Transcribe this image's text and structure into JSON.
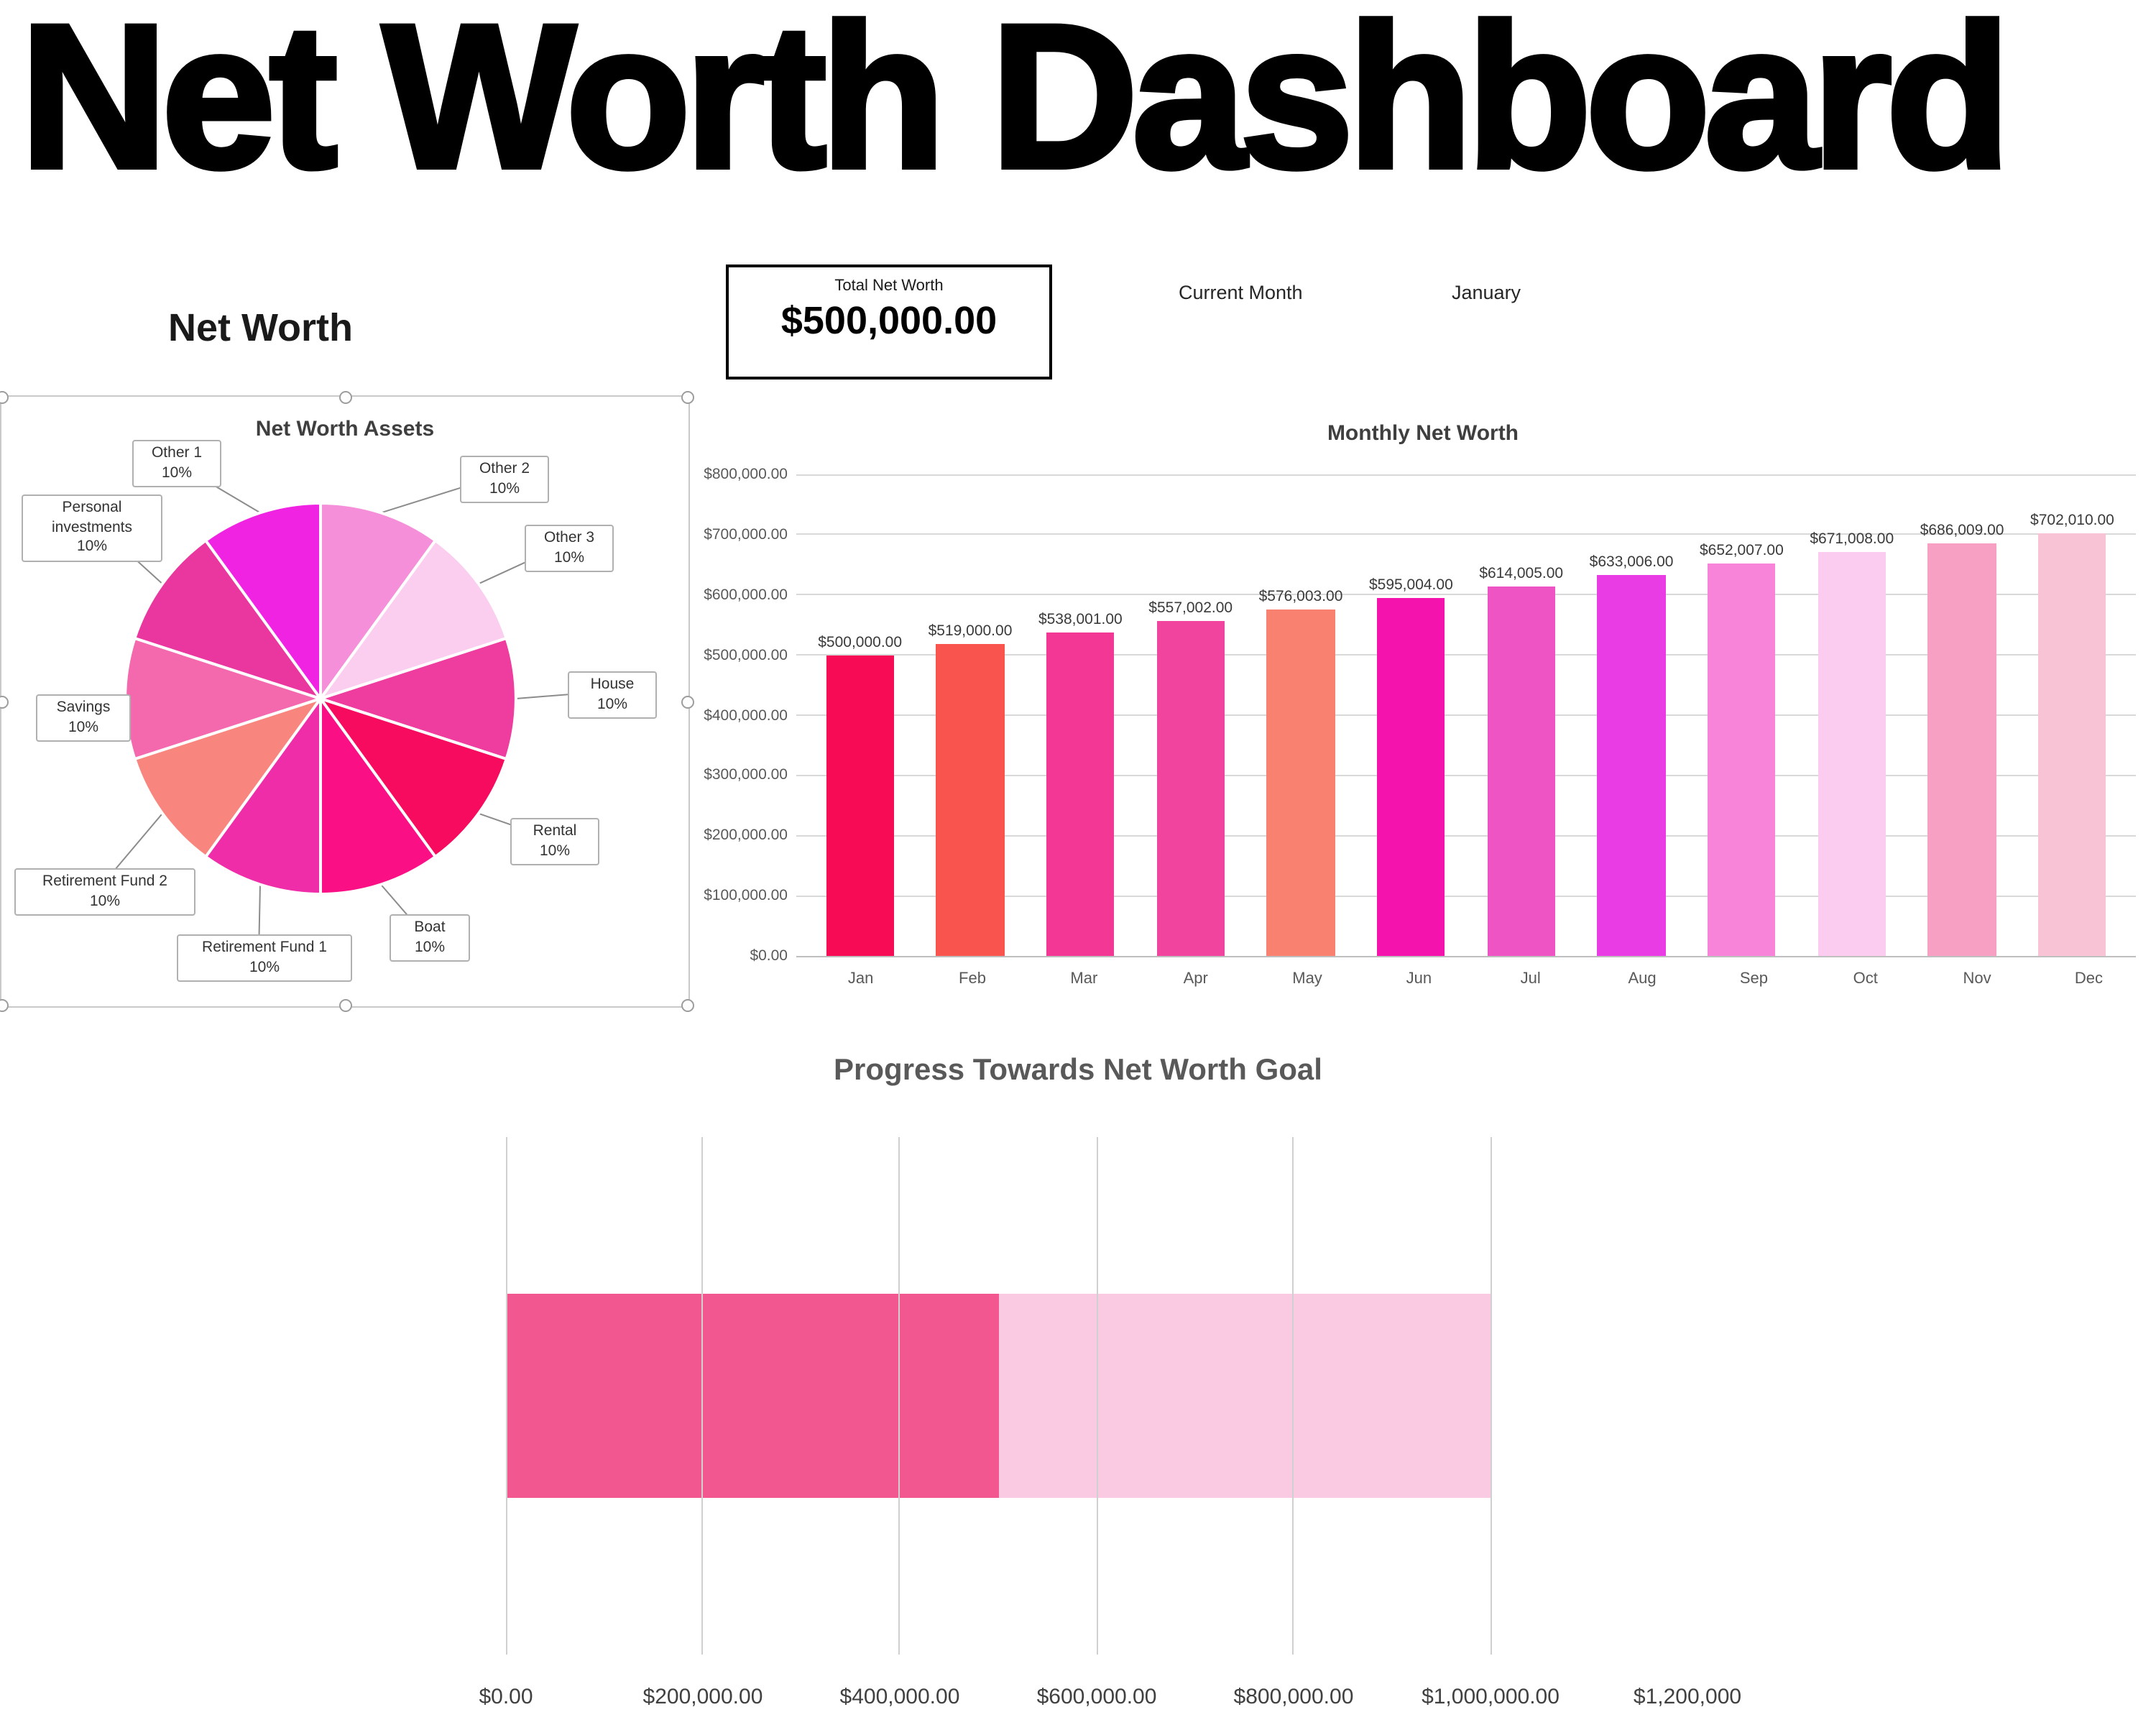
{
  "title": "Net Worth Dashboard",
  "net_worth_section_heading": "Net Worth",
  "summary": {
    "total_net_worth_label": "Total Net Worth",
    "total_net_worth_value": "$500,000.00",
    "current_month_label": "Current Month",
    "current_month_value": "January"
  },
  "chart_data": [
    {
      "type": "pie",
      "title": "Net Worth Assets",
      "slices": [
        {
          "label": "Other 2",
          "pct": "10%",
          "value": 10,
          "color": "#f58fd9"
        },
        {
          "label": "Other 3",
          "pct": "10%",
          "value": 10,
          "color": "#fbcdef"
        },
        {
          "label": "House",
          "pct": "10%",
          "value": 10,
          "color": "#ee3c9f"
        },
        {
          "label": "Rental",
          "pct": "10%",
          "value": 10,
          "color": "#f70b5e"
        },
        {
          "label": "Boat",
          "pct": "10%",
          "value": 10,
          "color": "#fa0f85"
        },
        {
          "label": "Retirement Fund 1",
          "pct": "10%",
          "value": 10,
          "color": "#f02da9"
        },
        {
          "label": "Retirement Fund 2",
          "pct": "10%",
          "value": 10,
          "color": "#f9867e"
        },
        {
          "label": "Savings",
          "pct": "10%",
          "value": 10,
          "color": "#f468ae"
        },
        {
          "label": "Personal investments",
          "pct": "10%",
          "value": 10,
          "color": "#e9379f"
        },
        {
          "label": "Other 1",
          "pct": "10%",
          "value": 10,
          "color": "#f023e3"
        }
      ]
    },
    {
      "type": "bar",
      "title": "Monthly Net Worth",
      "categories": [
        "Jan",
        "Feb",
        "Mar",
        "Apr",
        "May",
        "Jun",
        "Jul",
        "Aug",
        "Sep",
        "Oct",
        "Nov",
        "Dec"
      ],
      "values": [
        500000,
        519000,
        538001,
        557002,
        576003,
        595004,
        614005,
        633006,
        652007,
        671008,
        686009,
        702010
      ],
      "value_labels": [
        "$500,000.00",
        "$519,000.00",
        "$538,001.00",
        "$557,002.00",
        "$576,003.00",
        "$595,004.00",
        "$614,005.00",
        "$633,006.00",
        "$652,007.00",
        "$671,008.00",
        "$686,009.00",
        "$702,010.00"
      ],
      "bar_colors": [
        "#f70b55",
        "#fa544e",
        "#f23795",
        "#f1449f",
        "#f9816f",
        "#f414ad",
        "#ef54c5",
        "#ea3ce4",
        "#f784d8",
        "#fbcbf0",
        "#f89fc4",
        "#f9c3d6"
      ],
      "y_ticks": [
        "$800,000.00",
        "$700,000.00",
        "$600,000.00",
        "$500,000.00",
        "$400,000.00",
        "$300,000.00",
        "$200,000.00",
        "$100,000.00",
        "$0.00"
      ],
      "ylim": [
        0,
        800000
      ],
      "grid": true,
      "legend": "none"
    },
    {
      "type": "stacked-bar-horizontal",
      "title": "Progress Towards Net Worth Goal",
      "segments": [
        {
          "value": 500000,
          "color": "#f2578f"
        },
        {
          "value": 500000,
          "color": "#fac9e2"
        }
      ],
      "x_ticks": [
        "$0.00",
        "$200,000.00",
        "$400,000.00",
        "$600,000.00",
        "$800,000.00",
        "$1,000,000.00",
        "$1,200,000"
      ],
      "x_tick_values": [
        0,
        200000,
        400000,
        600000,
        800000,
        1000000,
        1200000
      ],
      "xlim": [
        0,
        1200000
      ],
      "grid": true,
      "legend": "none"
    }
  ]
}
